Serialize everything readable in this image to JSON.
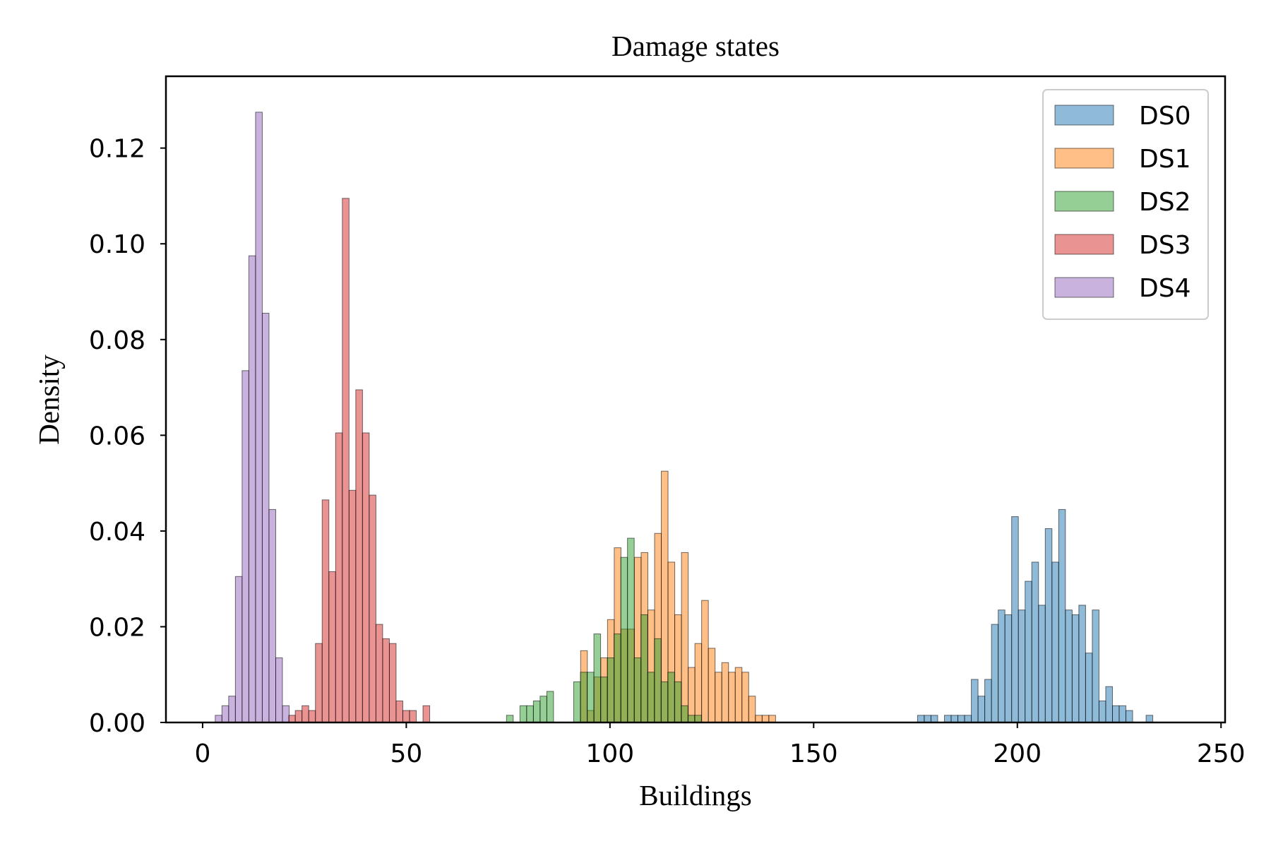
{
  "chart_data": {
    "type": "histogram",
    "title": "Damage states",
    "xlabel": "Buildings",
    "ylabel": "Density",
    "xlim": [
      -9,
      251
    ],
    "ylim": [
      0,
      0.135
    ],
    "xticks": [
      0,
      50,
      100,
      150,
      200,
      250
    ],
    "yticks": [
      0.0,
      0.02,
      0.04,
      0.06,
      0.08,
      0.1,
      0.12
    ],
    "grid": false,
    "legend_position": "top-right",
    "bar_alpha": 0.5,
    "series": [
      {
        "name": "DS0",
        "color": "#1f77b4",
        "bin_start": 175.5,
        "bin_width": 1.65,
        "densities": [
          0.0015,
          0.0015,
          0.0015,
          0.0,
          0.0015,
          0.0015,
          0.0015,
          0.0015,
          0.009,
          0.0055,
          0.009,
          0.0205,
          0.0235,
          0.0225,
          0.043,
          0.0235,
          0.0295,
          0.0335,
          0.0245,
          0.0405,
          0.0335,
          0.0445,
          0.0235,
          0.0225,
          0.0245,
          0.0145,
          0.0235,
          0.0045,
          0.0075,
          0.0035,
          0.0035,
          0.0025,
          0.0,
          0.0,
          0.0015
        ]
      },
      {
        "name": "DS1",
        "color": "#ff7f0e",
        "bin_start": 92.8,
        "bin_width": 1.65,
        "densities": [
          0.015,
          0.0025,
          0.0095,
          0.0135,
          0.0215,
          0.0365,
          0.0195,
          0.0195,
          0.0345,
          0.0355,
          0.0235,
          0.0395,
          0.0525,
          0.0335,
          0.0225,
          0.0355,
          0.0115,
          0.0165,
          0.0255,
          0.0155,
          0.0105,
          0.0125,
          0.0105,
          0.0115,
          0.0105,
          0.0055,
          0.0015,
          0.0015,
          0.0015
        ]
      },
      {
        "name": "DS2",
        "color": "#2ca02c",
        "bin_start": 74.6,
        "bin_width": 1.65,
        "densities": [
          0.0015,
          0.0,
          0.0035,
          0.0035,
          0.0045,
          0.0055,
          0.0065,
          0.0,
          0.0,
          0.0,
          0.0085,
          0.0105,
          0.0105,
          0.0185,
          0.0095,
          0.0135,
          0.0185,
          0.0345,
          0.0385,
          0.0135,
          0.0225,
          0.0105,
          0.0175,
          0.0085,
          0.0105,
          0.0085,
          0.0035,
          0.0015,
          0.0015
        ]
      },
      {
        "name": "DS3",
        "color": "#d62728",
        "bin_start": 21.1,
        "bin_width": 1.65,
        "densities": [
          0.0015,
          0.0025,
          0.0035,
          0.0025,
          0.0165,
          0.0465,
          0.0315,
          0.0605,
          0.1095,
          0.0485,
          0.0695,
          0.0605,
          0.0475,
          0.0205,
          0.0175,
          0.0165,
          0.0045,
          0.0025,
          0.0025,
          0.0,
          0.0035
        ]
      },
      {
        "name": "DS4",
        "color": "#9467bd",
        "bin_start": 3.1,
        "bin_width": 1.65,
        "densities": [
          0.0015,
          0.0035,
          0.0055,
          0.0305,
          0.0735,
          0.0975,
          0.1275,
          0.0855,
          0.0445,
          0.0135,
          0.0035
        ]
      }
    ]
  }
}
